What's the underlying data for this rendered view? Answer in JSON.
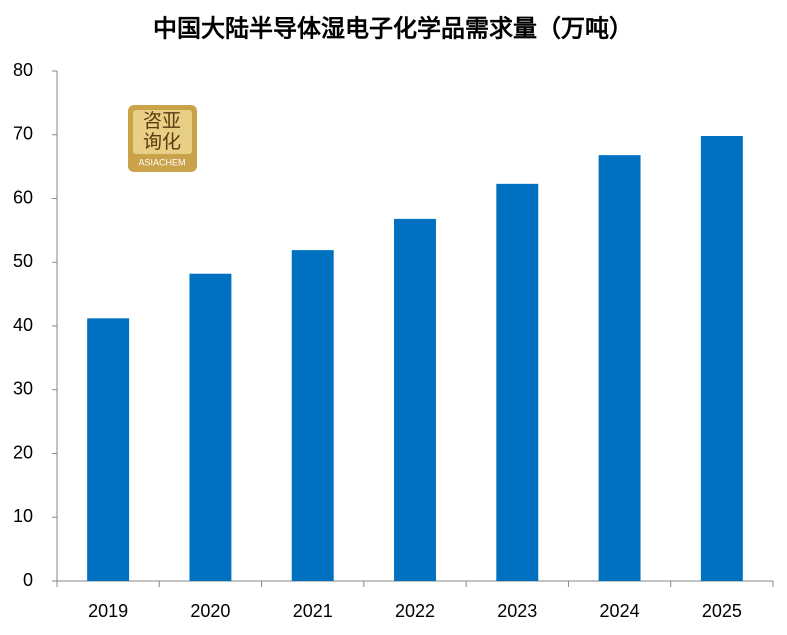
{
  "chart_data": {
    "type": "bar",
    "title": "中国大陆半导体湿电子化学品需求量（万吨）",
    "categories": [
      "2019",
      "2020",
      "2021",
      "2022",
      "2023",
      "2024",
      "2025"
    ],
    "values": [
      41.2,
      48.2,
      51.9,
      56.8,
      62.3,
      66.8,
      69.8
    ],
    "color": "#0070c0",
    "ylim": [
      0,
      80
    ],
    "yticks": [
      0,
      10,
      20,
      30,
      40,
      50,
      60,
      70,
      80
    ],
    "grid": false
  },
  "logo": {
    "lines": [
      "咨亚",
      "询化"
    ],
    "brand": "ASIACHEM"
  }
}
